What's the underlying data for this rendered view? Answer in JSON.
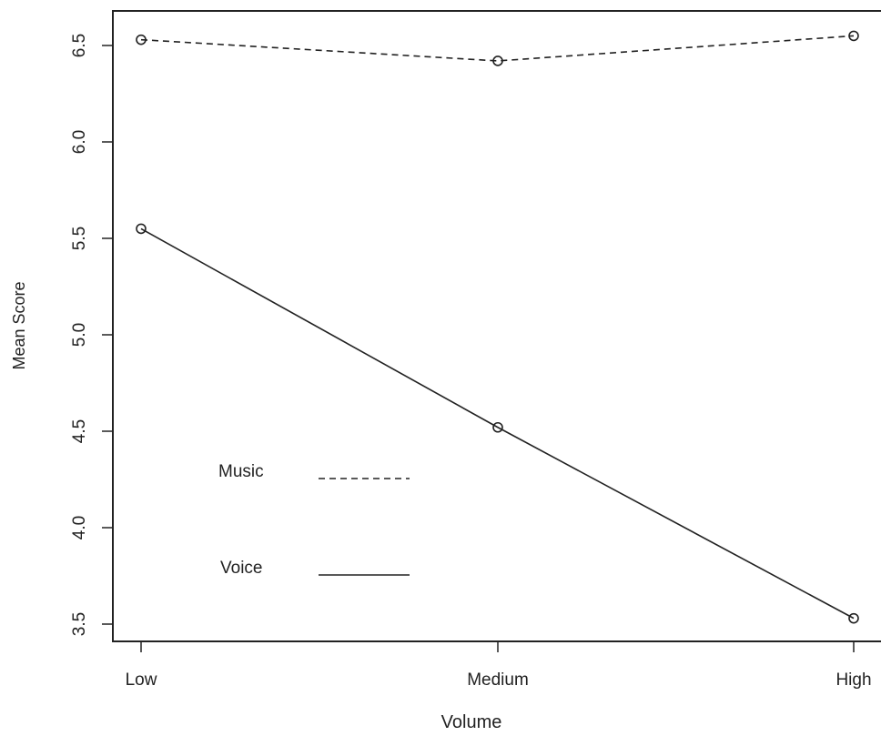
{
  "chart_data": {
    "type": "line",
    "title": "",
    "xlabel": "Volume",
    "ylabel": "Mean Score",
    "categories": [
      "Low",
      "Medium",
      "High"
    ],
    "ylim": [
      3.5,
      6.5
    ],
    "yticks": [
      "3.5",
      "4.0",
      "4.5",
      "5.0",
      "5.5",
      "6.0",
      "6.5"
    ],
    "series": [
      {
        "name": "Music",
        "style": "dashed",
        "values": [
          6.53,
          6.42,
          6.55
        ]
      },
      {
        "name": "Voice",
        "style": "solid",
        "values": [
          5.55,
          4.52,
          3.53
        ]
      }
    ],
    "grid": false,
    "legend": "bottom-left",
    "colors": {
      "ink": "#222222",
      "background": "#ffffff"
    }
  }
}
